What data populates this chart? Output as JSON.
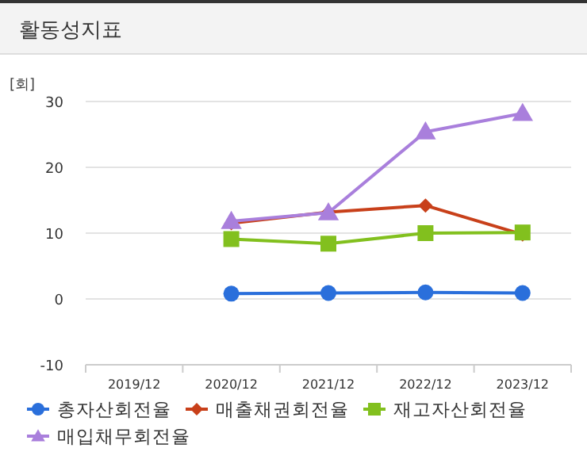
{
  "chart_data": {
    "type": "line",
    "title": "활동성지표",
    "ylabel": "[회]",
    "categories": [
      "2019/12",
      "2020/12",
      "2021/12",
      "2022/12",
      "2023/12"
    ],
    "series": [
      {
        "name": "총자산회전율",
        "color": "#2a6fdb",
        "marker": "circle",
        "values": [
          null,
          0.8,
          0.9,
          1.0,
          0.9
        ]
      },
      {
        "name": "매출채권회전율",
        "color": "#c8401a",
        "marker": "diamond",
        "values": [
          null,
          11.5,
          13.2,
          14.2,
          9.8
        ]
      },
      {
        "name": "재고자산회전율",
        "color": "#82c01e",
        "marker": "square",
        "values": [
          null,
          9.1,
          8.4,
          10.0,
          10.1
        ]
      },
      {
        "name": "매입채무회전율",
        "color": "#a97fdc",
        "marker": "triangle",
        "values": [
          null,
          11.8,
          13.1,
          25.4,
          28.2
        ]
      }
    ],
    "ylim": [
      -10,
      30
    ],
    "yticks": [
      -10,
      0,
      10,
      20,
      30
    ],
    "grid": "y",
    "legend": "bottom"
  }
}
